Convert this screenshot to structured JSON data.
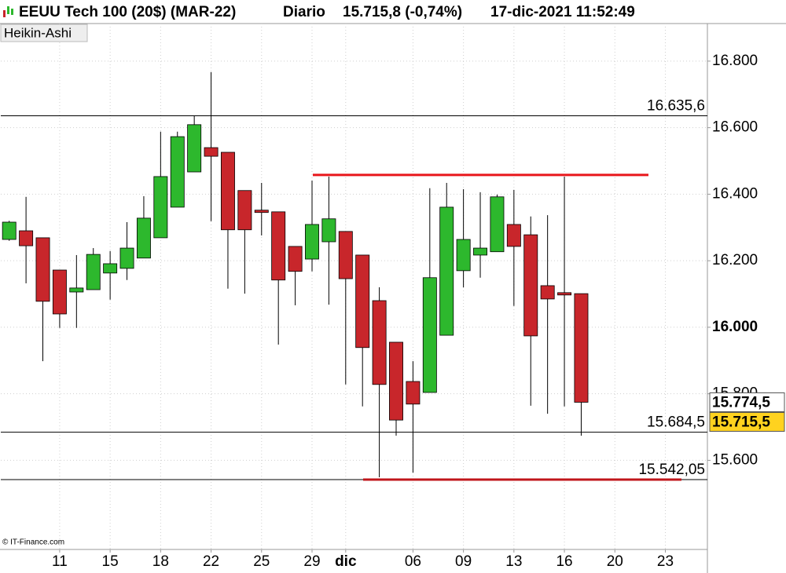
{
  "chart_data": {
    "type": "candlestick",
    "title": "EEUU Tech 100 (20$) (MAR-22)",
    "period": "Diario",
    "quote": "15.715,8 (-0,74%)",
    "timestamp": "17-dic-2021 11:52:49",
    "chart_style": "Heikin-Ashi",
    "watermark": "© IT-Finance.com",
    "categories": [
      null,
      null,
      null,
      "11",
      null,
      null,
      "15",
      null,
      null,
      "18",
      null,
      null,
      "22",
      null,
      null,
      "25",
      null,
      null,
      "29",
      null,
      "dic",
      null,
      null,
      null,
      "06",
      null,
      null,
      "09",
      null,
      null,
      "13",
      null,
      null,
      "16",
      null,
      null,
      "20",
      null,
      null,
      "23",
      null,
      null
    ],
    "open": [
      16264,
      16290,
      16269,
      16172,
      16106,
      16113,
      16163,
      16177,
      16208,
      16269,
      16361,
      16467,
      16540,
      16526,
      16411,
      16352,
      16347,
      16243,
      16205,
      16257,
      16288,
      16217,
      16080,
      15955,
      15837,
      15804,
      15976,
      16170,
      16217,
      16227,
      16309,
      16278,
      16125,
      16104,
      16101,
      null,
      null,
      null,
      null,
      null,
      null,
      null
    ],
    "high": [
      16320,
      16392,
      16269,
      16172,
      16217,
      16238,
      16229,
      16316,
      16394,
      16588,
      16588,
      16635,
      16767,
      16526,
      16411,
      16434,
      16347,
      16243,
      16441,
      16453,
      16288,
      16217,
      16120,
      15955,
      15898,
      16418,
      16434,
      16415,
      16406,
      16399,
      16413,
      16333,
      16337,
      16453,
      16101,
      null,
      null,
      null,
      null,
      null,
      null,
      null
    ],
    "low": [
      16260,
      16132,
      15898,
      15998,
      15998,
      16113,
      16083,
      16142,
      16208,
      16269,
      16361,
      16467,
      16319,
      16116,
      16101,
      16276,
      15948,
      16066,
      16168,
      16068,
      15828,
      15762,
      15549,
      15674,
      15563,
      15804,
      15976,
      16120,
      16149,
      16227,
      16064,
      15764,
      15740,
      15762,
      15674,
      null,
      null,
      null,
      null,
      null,
      null,
      null
    ],
    "close": [
      16316,
      16245,
      16078,
      16040,
      16118,
      16219,
      16191,
      16238,
      16328,
      16453,
      16573,
      16609,
      16514,
      16293,
      16293,
      16345,
      16142,
      16168,
      16309,
      16326,
      16146,
      15939,
      15828,
      15721,
      15769,
      16149,
      16361,
      16264,
      16238,
      16392,
      16243,
      15974,
      16085,
      16097,
      15774.5,
      null,
      null,
      null,
      null,
      null,
      null,
      null
    ],
    "up_color": "#2db82d",
    "down_color": "#c8262b",
    "ylim": [
      15332,
      16913
    ],
    "yticks": [
      {
        "value": 15600,
        "label": "15.600"
      },
      {
        "value": 15800,
        "label": "15.800"
      },
      {
        "value": 16000,
        "label": "16.000"
      },
      {
        "value": 16200,
        "label": "16.200"
      },
      {
        "value": 16400,
        "label": "16.400"
      },
      {
        "value": 16600,
        "label": "16.600"
      },
      {
        "value": 16800,
        "label": "16.800"
      }
    ],
    "grid": true,
    "hlines": [
      {
        "value": 16635.6,
        "label": "16.635,6",
        "color": "#000000"
      },
      {
        "value": 15684.5,
        "label": "15.684,5",
        "color": "#000000"
      },
      {
        "value": 15542.05,
        "label": "15.542,05",
        "color": "#000000"
      }
    ],
    "levels": [
      {
        "value": 16458,
        "color": "#e8161b"
      },
      {
        "value": 15542.05,
        "color": "#c0161b"
      }
    ],
    "price_labels": [
      {
        "value": 15774.5,
        "label": "15.774,5",
        "background": "#ffffff"
      },
      {
        "value": 15715.5,
        "label": "15.715,5",
        "background": "#ffd21f"
      }
    ]
  }
}
